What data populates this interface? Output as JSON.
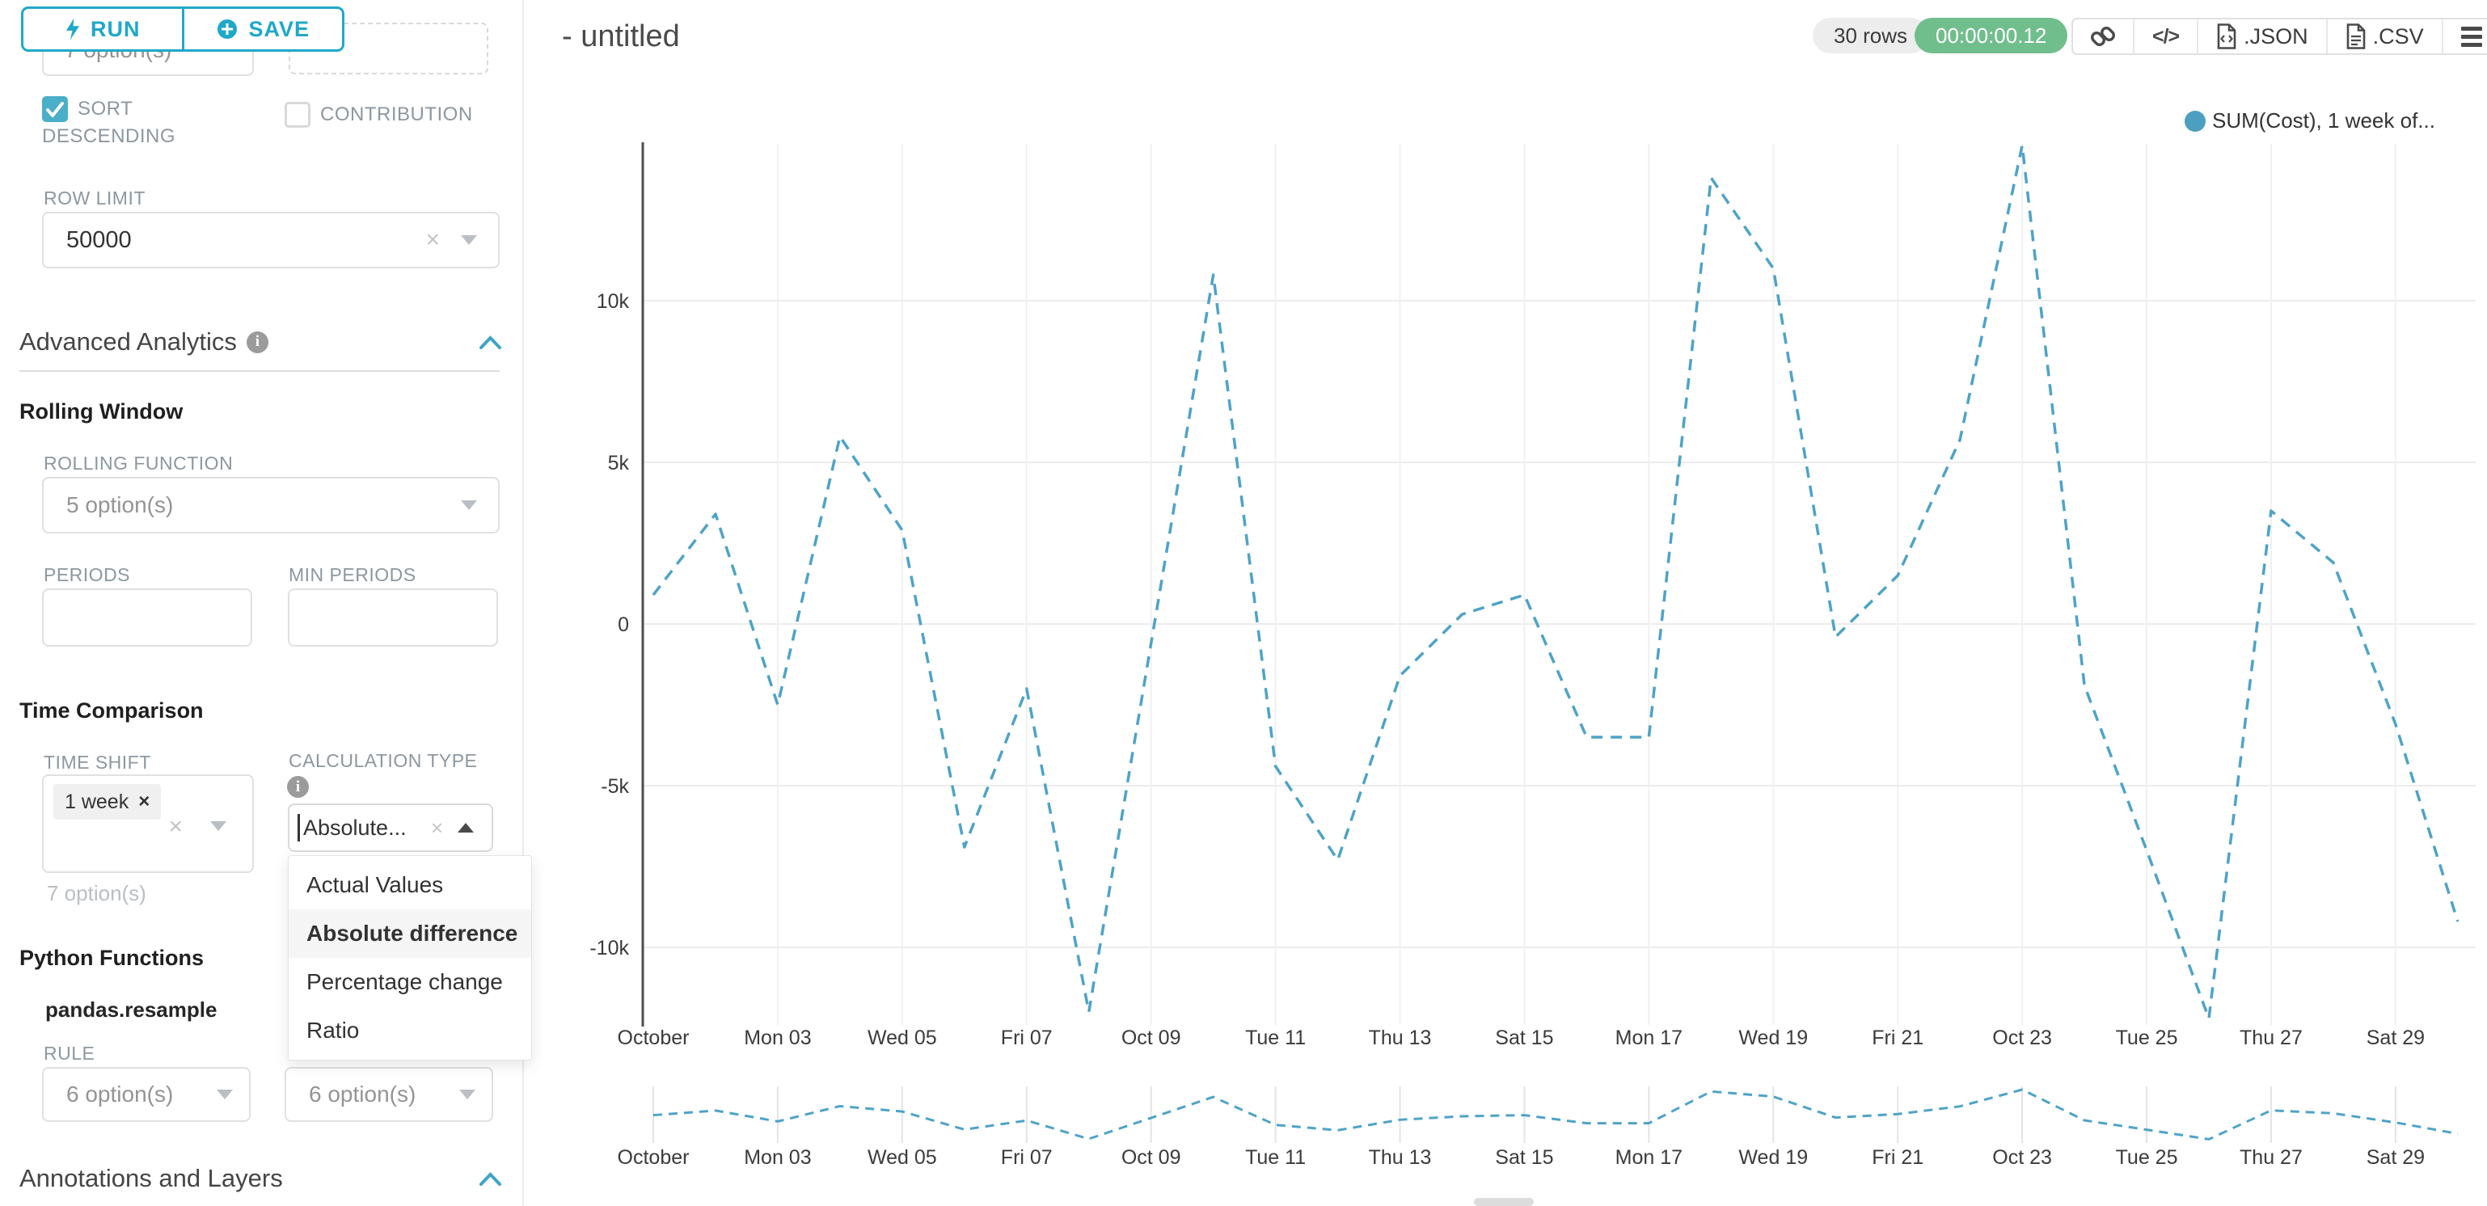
{
  "toolbar": {
    "run_label": "RUN",
    "save_label": "SAVE"
  },
  "sidebar": {
    "top_row": {
      "left_value": "7 option(s)"
    },
    "checkboxes": {
      "sort_descending": "SORT DESCENDING",
      "contribution": "CONTRIBUTION"
    },
    "row_limit": {
      "label": "ROW LIMIT",
      "value": "50000"
    },
    "advanced_analytics": {
      "title": "Advanced Analytics"
    },
    "rolling_window": {
      "title": "Rolling Window",
      "function_label": "ROLLING FUNCTION",
      "function_value": "5 option(s)",
      "periods_label": "PERIODS",
      "min_periods_label": "MIN PERIODS"
    },
    "time_comparison": {
      "title": "Time Comparison",
      "time_shift_label": "TIME SHIFT",
      "tag": "1 week",
      "placeholder": "7 option(s)",
      "calc_label": "CALCULATION TYPE",
      "calc_value": "Absolute...",
      "options": [
        "Actual Values",
        "Absolute difference",
        "Percentage change",
        "Ratio"
      ],
      "selected_option": "Absolute difference"
    },
    "python_functions": {
      "title": "Python Functions",
      "subtitle": "pandas.resample",
      "rule_label": "RULE",
      "rule_value": "6 option(s)",
      "fill_value": "6 option(s)"
    },
    "annotations": {
      "title": "Annotations and Layers"
    }
  },
  "header": {
    "title": "- untitled",
    "rows_badge": "30 rows",
    "timer_badge": "00:00:00.12",
    "export": {
      "code_label": "</>",
      "json_label": ".JSON",
      "csv_label": ".CSV"
    }
  },
  "chart_data": {
    "type": "line",
    "title": "",
    "legend": [
      {
        "name": "SUM(Cost), 1 week of...",
        "color": "#4C9FC0"
      }
    ],
    "legend_position": "top-right",
    "grid": true,
    "style": {
      "dashed": true,
      "line_color": "#4EA3C7"
    },
    "x_tick_labels": [
      "October",
      "Mon 03",
      "Wed 05",
      "Fri 07",
      "Oct 09",
      "Tue 11",
      "Thu 13",
      "Sat 15",
      "Mon 17",
      "Wed 19",
      "Fri 21",
      "Oct 23",
      "Tue 25",
      "Thu 27",
      "Sat 29"
    ],
    "x_tick_days": [
      1,
      3,
      5,
      7,
      9,
      11,
      13,
      15,
      17,
      19,
      21,
      23,
      25,
      27,
      29
    ],
    "y_ticks": [
      {
        "label": "10k",
        "value": 10000
      },
      {
        "label": "5k",
        "value": 5000
      },
      {
        "label": "0",
        "value": 0
      },
      {
        "label": "-5k",
        "value": -5000
      },
      {
        "label": "-10k",
        "value": -10000
      }
    ],
    "ylim": [
      -12450,
      14800
    ],
    "x_days": [
      1,
      2,
      3,
      4,
      5,
      6,
      7,
      8,
      9,
      10,
      11,
      12,
      13,
      14,
      15,
      16,
      17,
      18,
      19,
      20,
      21,
      22,
      23,
      24,
      25,
      26,
      27,
      28,
      29,
      30
    ],
    "series": [
      {
        "name": "SUM(Cost), 1 week of...",
        "values": [
          900,
          3400,
          -2500,
          5800,
          2900,
          -6900,
          -2000,
          -12000,
          -600,
          10800,
          -4400,
          -7300,
          -1600,
          300,
          900,
          -3500,
          -3500,
          13800,
          11000,
          -400,
          1500,
          5700,
          14800,
          -1900,
          -7000,
          -12200,
          3500,
          1900,
          -3100,
          -9200
        ]
      }
    ],
    "mini_chart": {
      "present": true,
      "x_tick_labels_repeated": true
    }
  }
}
